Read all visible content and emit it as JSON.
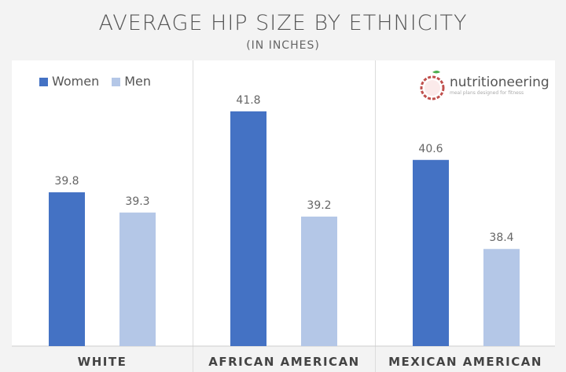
{
  "chart_data": {
    "type": "bar",
    "title": "AVERAGE HIP SIZE BY ETHNICITY",
    "subtitle": "(IN INCHES)",
    "categories": [
      "WHITE",
      "AFRICAN AMERICAN",
      "MEXICAN AMERICAN"
    ],
    "series": [
      {
        "name": "Women",
        "color": "#4472c4",
        "values": [
          39.8,
          41.8,
          40.6
        ]
      },
      {
        "name": "Men",
        "color": "#b4c7e7",
        "values": [
          39.3,
          39.2,
          38.4
        ]
      }
    ],
    "ylim": [
      36,
      43
    ],
    "grid": false,
    "legend": "top-left"
  },
  "logo": {
    "name": "nutritioneering",
    "tagline": "meal plans designed for fitness"
  }
}
